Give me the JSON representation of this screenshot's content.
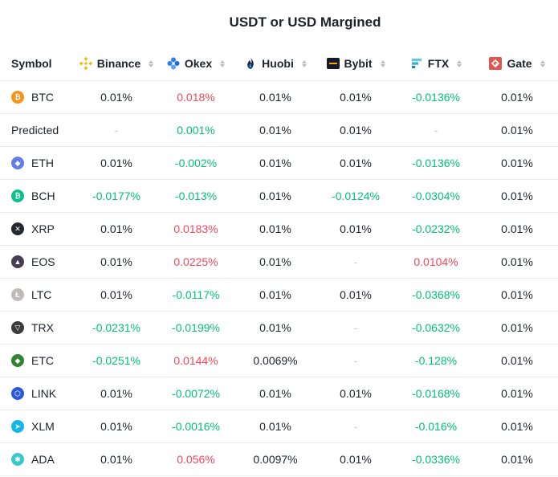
{
  "title": "USDT or USD Margined",
  "header": {
    "symbol": "Symbol",
    "exchanges": [
      {
        "name": "Binance",
        "icon": "binance-icon"
      },
      {
        "name": "Okex",
        "icon": "okex-icon"
      },
      {
        "name": "Huobi",
        "icon": "huobi-icon"
      },
      {
        "name": "Bybit",
        "icon": "bybit-icon"
      },
      {
        "name": "FTX",
        "icon": "ftx-icon"
      },
      {
        "name": "Gate",
        "icon": "gate-icon"
      }
    ]
  },
  "rows": [
    {
      "symbol": "BTC",
      "icon": "btc-icon",
      "color": "#f7931a",
      "values": [
        "0.01%",
        "0.018%",
        "0.01%",
        "0.01%",
        "-0.0136%",
        "0.01%"
      ],
      "tone": [
        "n",
        "r",
        "n",
        "n",
        "g",
        "n"
      ]
    },
    {
      "symbol": "Predicted",
      "icon": "",
      "color": "",
      "values": [
        "-",
        "0.001%",
        "0.01%",
        "0.01%",
        "-",
        "0.01%"
      ],
      "tone": [
        "d",
        "g",
        "n",
        "n",
        "d",
        "n"
      ]
    },
    {
      "symbol": "ETH",
      "icon": "eth-icon",
      "color": "#627eea",
      "values": [
        "0.01%",
        "-0.002%",
        "0.01%",
        "0.01%",
        "-0.0136%",
        "0.01%"
      ],
      "tone": [
        "n",
        "g",
        "n",
        "n",
        "g",
        "n"
      ]
    },
    {
      "symbol": "BCH",
      "icon": "bch-icon",
      "color": "#0ac18e",
      "values": [
        "-0.0177%",
        "-0.013%",
        "0.01%",
        "-0.0124%",
        "-0.0304%",
        "0.01%"
      ],
      "tone": [
        "g",
        "g",
        "n",
        "g",
        "g",
        "n"
      ]
    },
    {
      "symbol": "XRP",
      "icon": "xrp-icon",
      "color": "#23292f",
      "values": [
        "0.01%",
        "0.0183%",
        "0.01%",
        "0.01%",
        "-0.0232%",
        "0.01%"
      ],
      "tone": [
        "n",
        "r",
        "n",
        "n",
        "g",
        "n"
      ]
    },
    {
      "symbol": "EOS",
      "icon": "eos-icon",
      "color": "#443f54",
      "values": [
        "0.01%",
        "0.0225%",
        "0.01%",
        "-",
        "0.0104%",
        "0.01%"
      ],
      "tone": [
        "n",
        "r",
        "n",
        "d",
        "r",
        "n"
      ]
    },
    {
      "symbol": "LTC",
      "icon": "ltc-icon",
      "color": "#bfbbbb",
      "values": [
        "0.01%",
        "-0.0117%",
        "0.01%",
        "0.01%",
        "-0.0368%",
        "0.01%"
      ],
      "tone": [
        "n",
        "g",
        "n",
        "n",
        "g",
        "n"
      ]
    },
    {
      "symbol": "TRX",
      "icon": "trx-icon",
      "color": "#3c3c3d",
      "values": [
        "-0.0231%",
        "-0.0199%",
        "0.01%",
        "-",
        "-0.0632%",
        "0.01%"
      ],
      "tone": [
        "g",
        "g",
        "n",
        "d",
        "g",
        "n"
      ]
    },
    {
      "symbol": "ETC",
      "icon": "etc-icon",
      "color": "#328332",
      "values": [
        "-0.0251%",
        "0.0144%",
        "0.0069%",
        "-",
        "-0.128%",
        "0.01%"
      ],
      "tone": [
        "g",
        "r",
        "n",
        "d",
        "g",
        "n"
      ]
    },
    {
      "symbol": "LINK",
      "icon": "link-icon",
      "color": "#2a5ada",
      "values": [
        "0.01%",
        "-0.0072%",
        "0.01%",
        "0.01%",
        "-0.0168%",
        "0.01%"
      ],
      "tone": [
        "n",
        "g",
        "n",
        "n",
        "g",
        "n"
      ]
    },
    {
      "symbol": "XLM",
      "icon": "xlm-icon",
      "color": "#14b6e7",
      "values": [
        "0.01%",
        "-0.0016%",
        "0.01%",
        "-",
        "-0.016%",
        "0.01%"
      ],
      "tone": [
        "n",
        "g",
        "n",
        "d",
        "g",
        "n"
      ]
    },
    {
      "symbol": "ADA",
      "icon": "ada-icon",
      "color": "#3cc8c8",
      "values": [
        "0.01%",
        "0.056%",
        "0.0097%",
        "0.01%",
        "-0.0336%",
        "0.01%"
      ],
      "tone": [
        "n",
        "r",
        "n",
        "n",
        "g",
        "n"
      ]
    }
  ]
}
